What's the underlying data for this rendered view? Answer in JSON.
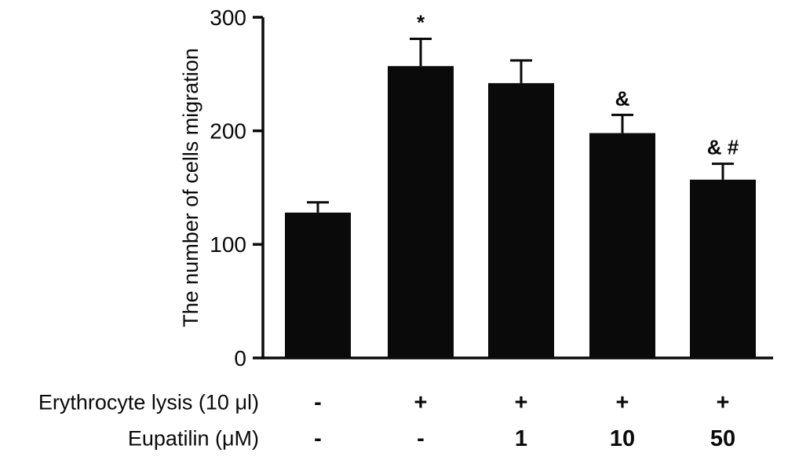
{
  "figure": {
    "description_label": "bar chart of cell migration counts"
  },
  "chart_data": {
    "type": "bar",
    "title": "",
    "xlabel": "",
    "ylabel": "The number of cells migration",
    "ylim": [
      0,
      300
    ],
    "yticks": [
      0,
      100,
      200,
      300
    ],
    "grid": false,
    "legend": "none",
    "bar_color": "#0a0a0a",
    "categories": [
      "lysis- / eupatilin-",
      "lysis+ / eupatilin-",
      "lysis+ / eupatilin 1",
      "lysis+ / eupatilin 10",
      "lysis+ / eupatilin 50"
    ],
    "values": [
      128,
      257,
      242,
      198,
      157
    ],
    "errors": [
      9,
      24,
      20,
      16,
      14
    ],
    "annotations": [
      "",
      "*",
      "",
      "&",
      "& #"
    ],
    "x_rows": [
      {
        "label": "Erythrocyte lysis (10 μl)",
        "values": [
          "-",
          "+",
          "+",
          "+",
          "+"
        ]
      },
      {
        "label": "Eupatilin (μM)",
        "values": [
          "-",
          "-",
          "1",
          "10",
          "50"
        ]
      }
    ]
  }
}
